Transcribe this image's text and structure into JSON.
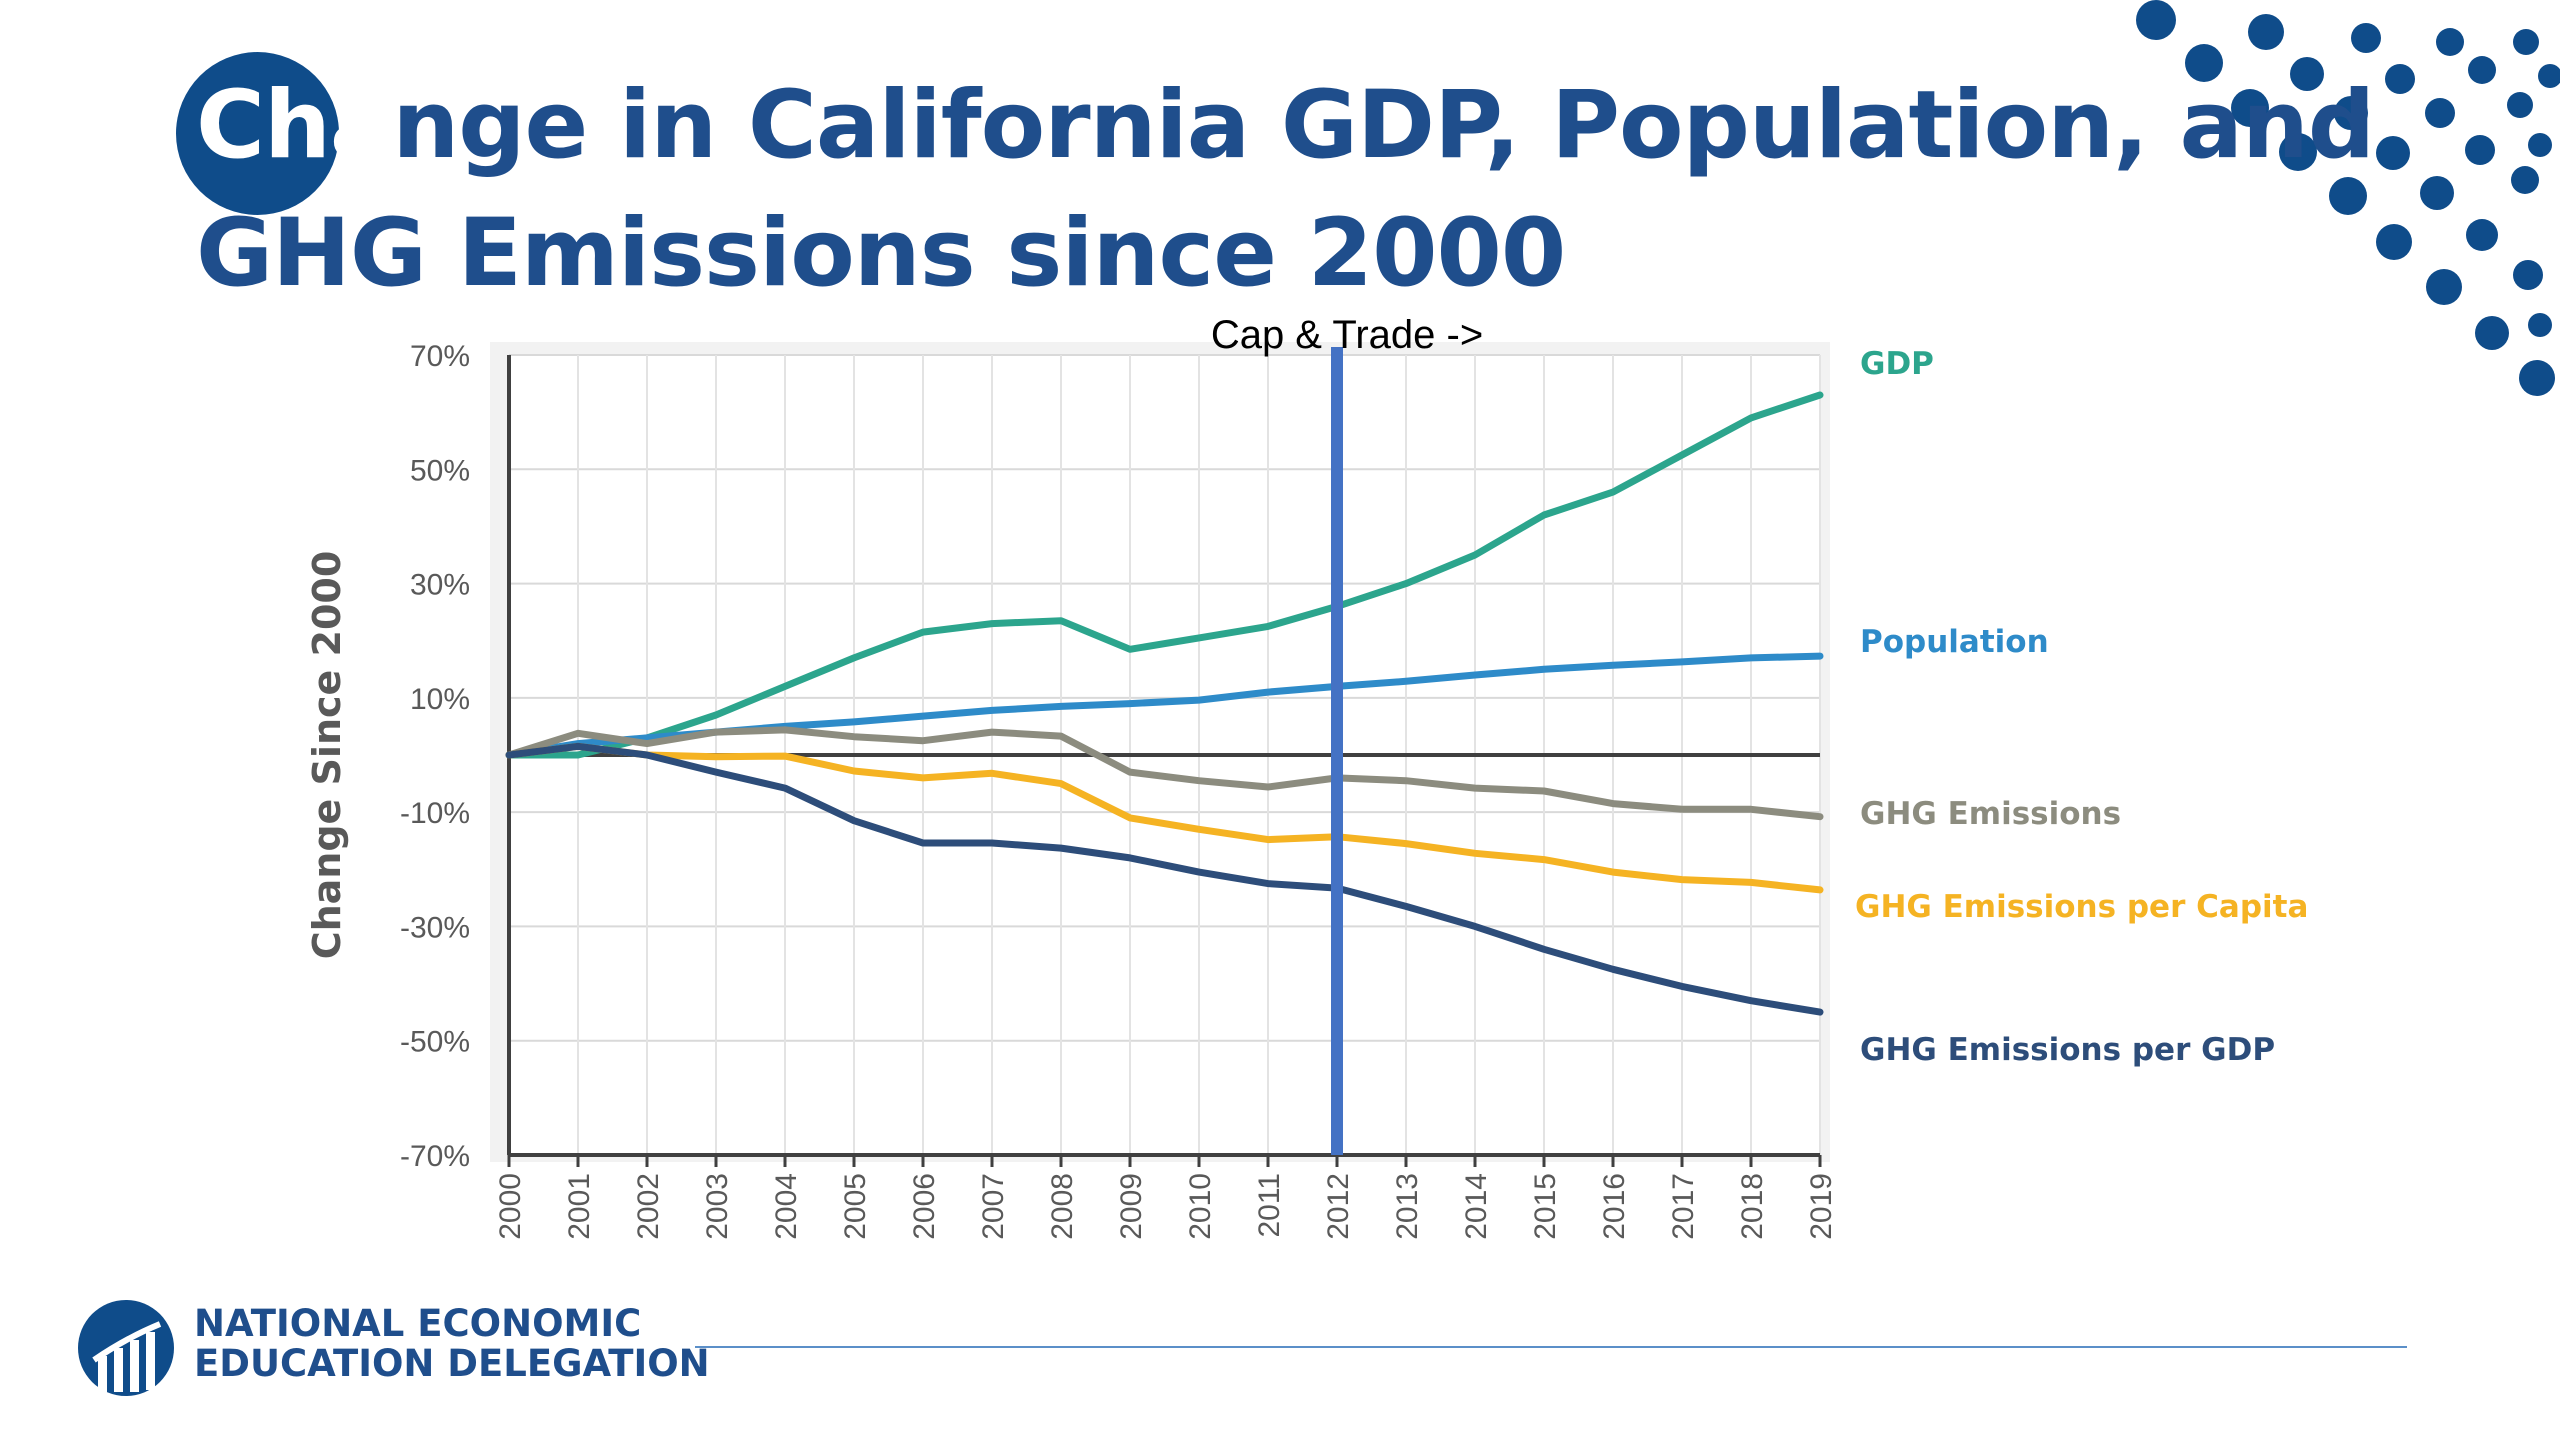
{
  "slide": {
    "title_line1_prefix": "Cha",
    "title_line1_rest": "nge in California GDP, Population, and",
    "title_line2": "GHG Emissions since 2000",
    "logo_line1": "NATIONAL ECONOMIC",
    "logo_line2": "EDUCATION DELEGATION",
    "colors": {
      "title": "#1f4e8c",
      "title_circle": "#0f4c8a",
      "dots": "#0f4c8a",
      "footer_rule": "#5b8fc8"
    },
    "icons": [
      "decorative-dots",
      "logo-icon"
    ]
  },
  "chart_data": {
    "type": "line",
    "title": "",
    "xlabel": "",
    "ylabel": "Change Since 2000",
    "ylim": [
      -70,
      70
    ],
    "yticks": [
      70,
      50,
      30,
      10,
      -10,
      -30,
      -50,
      -70
    ],
    "ytick_labels": [
      "70%",
      "50%",
      "30%",
      "10%",
      "-10%",
      "-30%",
      "-50%",
      "-70%"
    ],
    "x": [
      "2000",
      "2001",
      "2002",
      "2003",
      "2004",
      "2005",
      "2006",
      "2007",
      "2008",
      "2009",
      "2010",
      "2011",
      "2012",
      "2013",
      "2014",
      "2015",
      "2016",
      "2017",
      "2018",
      "2019"
    ],
    "grid": true,
    "legend": "right, labels at line ends",
    "annotation": {
      "text": "Cap & Trade ->",
      "x": "2012",
      "color": "#4472c4"
    },
    "series": [
      {
        "name": "GDP",
        "color": "#2ca58d",
        "values": [
          0,
          0,
          3,
          7,
          12,
          17,
          21.5,
          23,
          23.5,
          18.5,
          20.5,
          22.5,
          26,
          30,
          35,
          42,
          46,
          52.5,
          59,
          63
        ]
      },
      {
        "name": "Population",
        "color": "#2e8bc9",
        "values": [
          0,
          2,
          3,
          4,
          5,
          5.8,
          6.8,
          7.8,
          8.5,
          9,
          9.6,
          11,
          12,
          12.9,
          14,
          15,
          15.7,
          16.3,
          17,
          17.3
        ]
      },
      {
        "name": "GHG Emissions",
        "color": "#8c8c7f",
        "values": [
          0,
          3.8,
          2,
          4,
          4.4,
          3.2,
          2.5,
          4,
          3.3,
          -3,
          -4.5,
          -5.6,
          -4,
          -4.5,
          -5.8,
          -6.3,
          -8.5,
          -9.5,
          -9.5,
          -10.8
        ]
      },
      {
        "name": "GHG Emissions per Capita",
        "color": "#f5b323",
        "values": [
          0,
          1.5,
          0,
          -0.3,
          -0.2,
          -2.8,
          -4,
          -3.2,
          -5,
          -11,
          -13,
          -14.8,
          -14.3,
          -15.5,
          -17.2,
          -18.3,
          -20.5,
          -21.8,
          -22.3,
          -23.6
        ]
      },
      {
        "name": "GHG Emissions per GDP",
        "color": "#2d4d7a",
        "values": [
          0,
          1.5,
          0,
          -3,
          -5.8,
          -11.5,
          -15.4,
          -15.4,
          -16.3,
          -18,
          -20.5,
          -22.5,
          -23.3,
          -26.5,
          -30,
          -34,
          -37.5,
          -40.5,
          -43,
          -45
        ]
      }
    ]
  }
}
